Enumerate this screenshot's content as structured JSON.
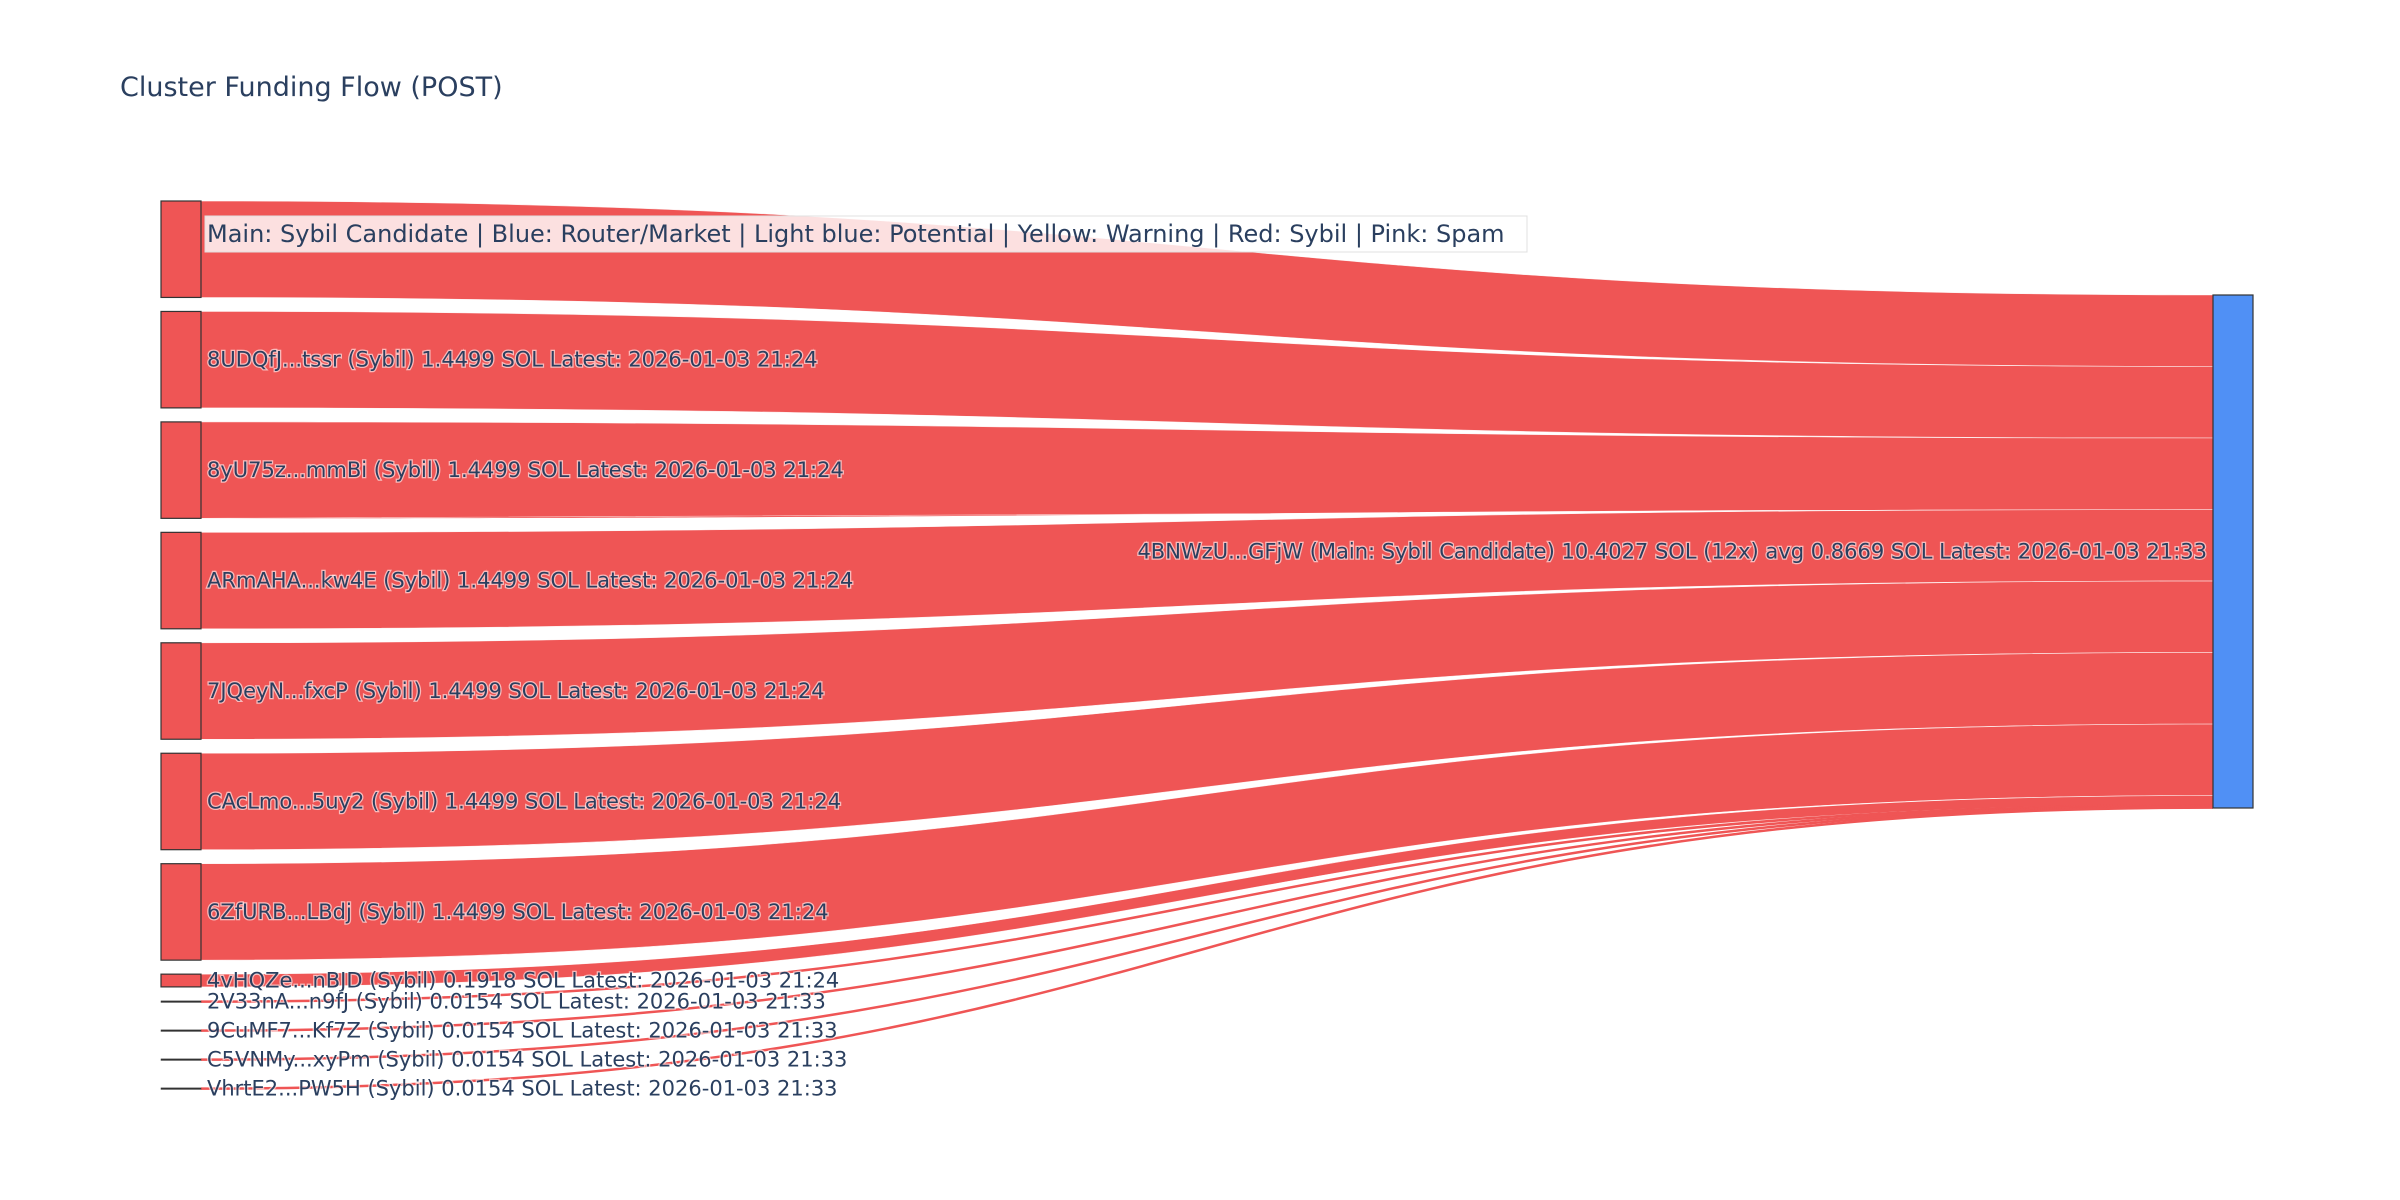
{
  "chart_data": {
    "type": "sankey",
    "title": "Cluster Funding Flow (POST)",
    "legend_text": "Main: Sybil Candidate  |  Blue: Router/Market | Light blue: Potential | Yellow: Warning | Red: Sybil | Pink: Spam",
    "colors": {
      "link": "#ef5555",
      "source_node": "#ef5555",
      "target_node": "#5090f5",
      "node_outline": "#333333",
      "label_text": "#2a3f5f"
    },
    "target": {
      "id": "4BNWzU...GFjW",
      "label": "4BNWzU...GFjW (Main: Sybil Candidate) 10.4027 SOL (12x) avg 0.8669 SOL Latest: 2026-01-03 21:33",
      "value": 10.4027
    },
    "sources": [
      {
        "id": "src-1",
        "label": "",
        "value": 1.4499
      },
      {
        "id": "8UDQfJ...tssr",
        "label": "8UDQfJ...tssr (Sybil) 1.4499 SOL Latest: 2026-01-03 21:24",
        "value": 1.4499
      },
      {
        "id": "8yU75z...mmBi",
        "label": "8yU75z...mmBi (Sybil) 1.4499 SOL Latest: 2026-01-03 21:24",
        "value": 1.4499
      },
      {
        "id": "ARmAHA...kw4E",
        "label": "ARmAHA...kw4E (Sybil) 1.4499 SOL Latest: 2026-01-03 21:24",
        "value": 1.4499
      },
      {
        "id": "7JQeyN...fxcP",
        "label": "7JQeyN...fxcP (Sybil) 1.4499 SOL Latest: 2026-01-03 21:24",
        "value": 1.4499
      },
      {
        "id": "CAcLmo...5uy2",
        "label": "CAcLmo...5uy2 (Sybil) 1.4499 SOL Latest: 2026-01-03 21:24",
        "value": 1.4499
      },
      {
        "id": "6ZfURB...LBdj",
        "label": "6ZfURB...LBdj (Sybil) 1.4499 SOL Latest: 2026-01-03 21:24",
        "value": 1.4499
      },
      {
        "id": "4vHQZe...nBJD",
        "label": "4vHQZe...nBJD (Sybil) 0.1918 SOL Latest: 2026-01-03 21:24",
        "value": 0.1918
      },
      {
        "id": "2V33nA...n9fJ",
        "label": "2V33nA...n9fJ (Sybil) 0.0154 SOL Latest: 2026-01-03 21:33",
        "value": 0.0154
      },
      {
        "id": "9CuMF7...Kf7Z",
        "label": "9CuMF7...Kf7Z (Sybil) 0.0154 SOL Latest: 2026-01-03 21:33",
        "value": 0.0154
      },
      {
        "id": "C5VNMy...xyPm",
        "label": "C5VNMy...xyPm (Sybil) 0.0154 SOL Latest: 2026-01-03 21:33",
        "value": 0.0154
      },
      {
        "id": "VhrtE2...PW5H",
        "label": "VhrtE2...PW5H (Sybil) 0.0154 SOL Latest: 2026-01-03 21:33",
        "value": 0.0154
      }
    ]
  }
}
